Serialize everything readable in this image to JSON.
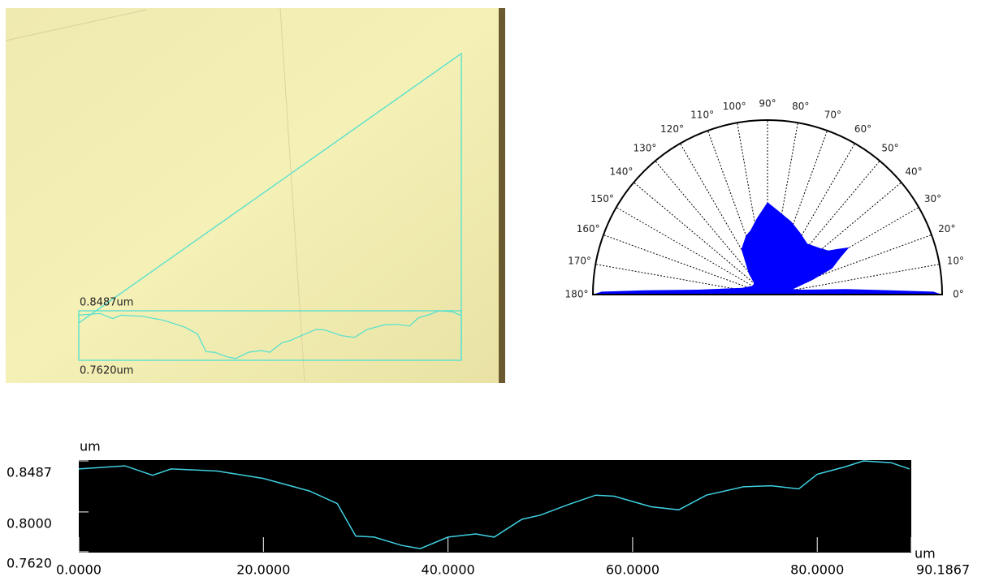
{
  "image_overlay": {
    "top_label": "0.8487um",
    "bottom_label": "0.7620um"
  },
  "chart_data": [
    {
      "type": "polar",
      "color": "#0000ff",
      "rlim": [
        0,
        1
      ],
      "thetaticks": [
        {
          "value": 0,
          "label": "0°"
        },
        {
          "value": 10,
          "label": "10°"
        },
        {
          "value": 20,
          "label": "20°"
        },
        {
          "value": 30,
          "label": "30°"
        },
        {
          "value": 40,
          "label": "40°"
        },
        {
          "value": 50,
          "label": "50°"
        },
        {
          "value": 60,
          "label": "60°"
        },
        {
          "value": 70,
          "label": "70°"
        },
        {
          "value": 80,
          "label": "80°"
        },
        {
          "value": 90,
          "label": "90°"
        },
        {
          "value": 100,
          "label": "100°"
        },
        {
          "value": 110,
          "label": "110°"
        },
        {
          "value": 120,
          "label": "120°"
        },
        {
          "value": 130,
          "label": "130°"
        },
        {
          "value": 140,
          "label": "140°"
        },
        {
          "value": 150,
          "label": "150°"
        },
        {
          "value": 160,
          "label": "160°"
        },
        {
          "value": 170,
          "label": "170°"
        },
        {
          "value": 180,
          "label": "180°"
        }
      ],
      "theta": [
        0,
        1,
        2,
        4,
        8,
        12,
        18,
        22,
        27,
        30,
        33,
        36,
        42,
        52,
        62,
        72,
        82,
        90,
        98,
        105,
        110,
        120,
        132,
        140,
        150,
        165,
        176,
        178,
        179,
        180
      ],
      "values": [
        1,
        0.95,
        0.7,
        0.45,
        0.2,
        0.15,
        0.27,
        0.4,
        0.47,
        0.54,
        0.48,
        0.43,
        0.4,
        0.37,
        0.4,
        0.44,
        0.48,
        0.53,
        0.44,
        0.38,
        0.36,
        0.3,
        0.16,
        0.1,
        0.1,
        0.15,
        0.4,
        0.7,
        0.95,
        1
      ]
    },
    {
      "type": "line",
      "x_label": "um",
      "y_label": "um",
      "xlim": [
        0,
        90.1867
      ],
      "ylim": [
        0.762,
        0.8487
      ],
      "xticks": [
        {
          "value": 0,
          "label": "0.0000"
        },
        {
          "value": 20,
          "label": "20.0000"
        },
        {
          "value": 40,
          "label": "40.0000"
        },
        {
          "value": 60,
          "label": "60.0000"
        },
        {
          "value": 80,
          "label": "80.0000"
        },
        90.1867
      ],
      "yticks": [
        {
          "value": 0.762,
          "label": "0.7620"
        },
        {
          "value": 0.8,
          "label": "0.8000"
        },
        {
          "value": 0.8487,
          "label": "0.8487"
        }
      ],
      "series": [
        {
          "color": "#3fd0e0",
          "x": [
            0,
            5,
            8,
            10,
            15,
            20,
            25,
            28,
            30,
            32,
            35,
            37,
            40,
            43,
            45,
            48,
            50,
            53,
            56,
            58,
            62,
            65,
            68,
            72,
            75,
            78,
            80,
            83,
            85,
            88,
            90
          ],
          "values": [
            0.841,
            0.844,
            0.835,
            0.841,
            0.839,
            0.832,
            0.82,
            0.808,
            0.777,
            0.776,
            0.768,
            0.765,
            0.776,
            0.779,
            0.776,
            0.793,
            0.797,
            0.807,
            0.816,
            0.815,
            0.805,
            0.802,
            0.816,
            0.824,
            0.825,
            0.822,
            0.836,
            0.843,
            0.8487,
            0.847,
            0.841
          ]
        }
      ]
    }
  ]
}
